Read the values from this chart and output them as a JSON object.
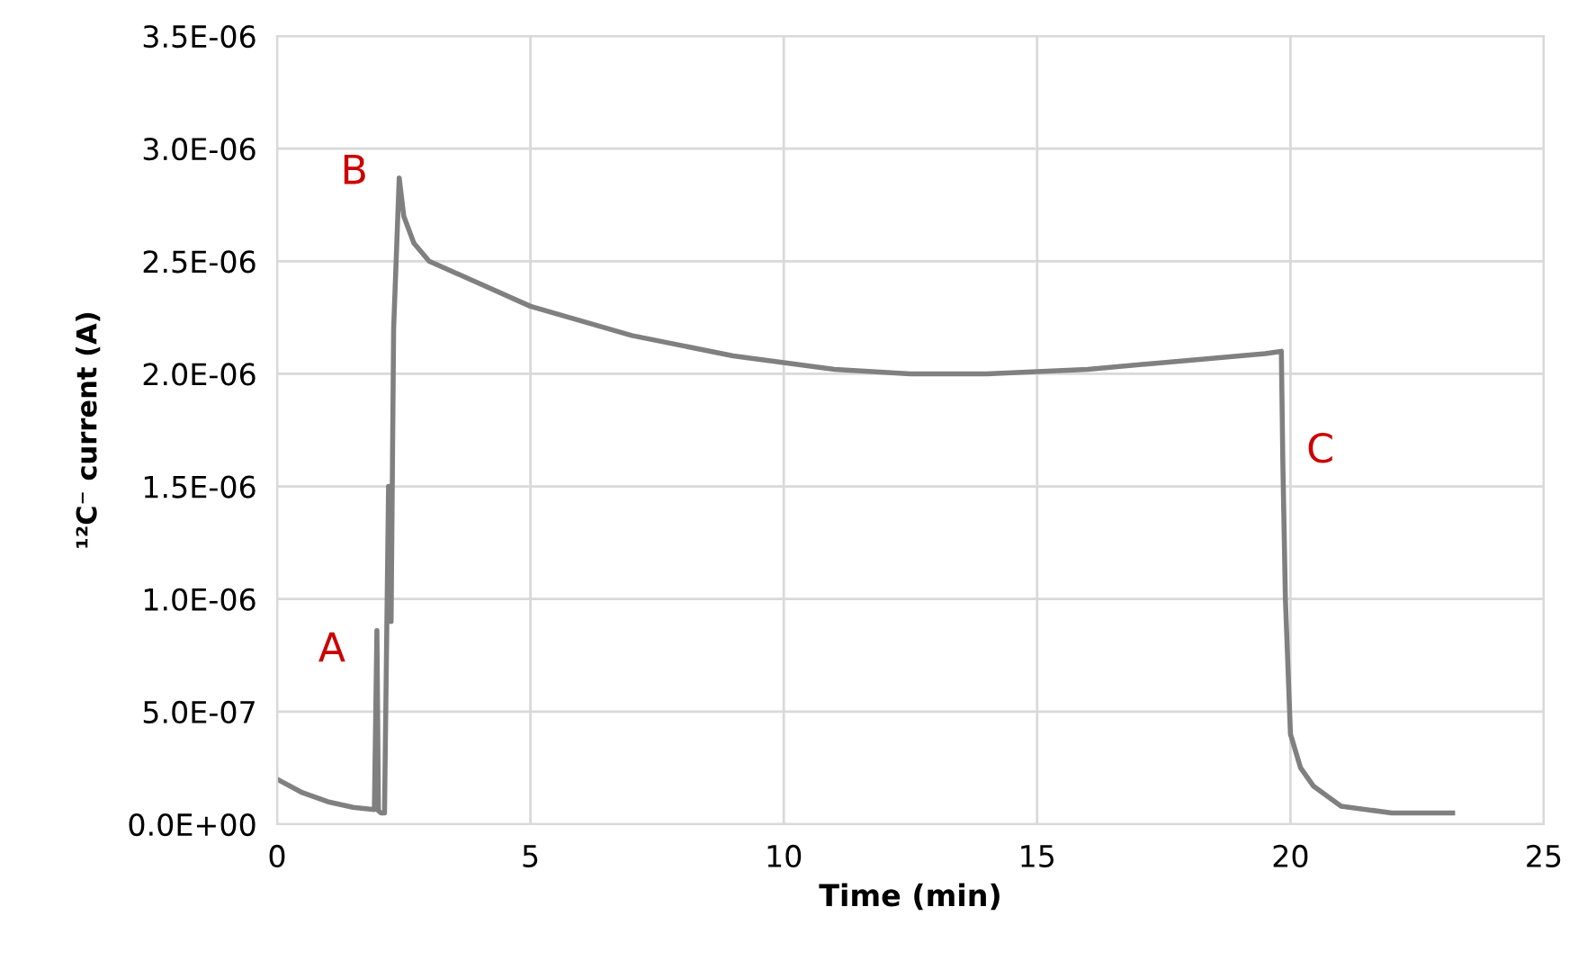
{
  "chart_data": {
    "type": "line",
    "xlabel": "Time (min)",
    "ylabel": "¹²C⁻ current (A)",
    "series": [
      {
        "color": "#808080",
        "x": [
          0,
          0.5,
          1.0,
          1.5,
          1.92,
          1.97,
          2.0,
          2.05,
          2.12,
          2.2,
          2.25,
          2.3,
          2.41,
          2.5,
          2.7,
          3,
          4,
          5,
          7,
          9,
          11,
          12.5,
          14,
          16,
          18,
          19.5,
          19.82,
          19.85,
          19.9,
          20.0,
          20.2,
          20.45,
          21,
          22,
          23.2
        ],
        "values": [
          2e-07,
          1.4e-07,
          1e-07,
          7.5e-08,
          6.5e-08,
          8.6e-07,
          6e-08,
          5e-08,
          5e-08,
          1.5e-06,
          9e-07,
          2.2e-06,
          2.87e-06,
          2.7e-06,
          2.58e-06,
          2.5e-06,
          2.4e-06,
          2.3e-06,
          2.17e-06,
          2.08e-06,
          2.02e-06,
          2e-06,
          2e-06,
          2.02e-06,
          2.06e-06,
          2.09e-06,
          2.1e-06,
          1.6e-06,
          1e-06,
          4e-07,
          2.5e-07,
          1.7e-07,
          8e-08,
          5e-08,
          5e-08
        ]
      }
    ],
    "xlim": [
      0,
      25
    ],
    "xticks": [
      0,
      5,
      10,
      15,
      20,
      25
    ],
    "ylim": [
      0,
      3.5e-06
    ],
    "yticks": [
      {
        "value": 0,
        "label": "0.0E+00"
      },
      {
        "value": 5e-07,
        "label": "5.0E-07"
      },
      {
        "value": 1e-06,
        "label": "1.0E-06"
      },
      {
        "value": 1.5e-06,
        "label": "1.5E-06"
      },
      {
        "value": 2e-06,
        "label": "2.0E-06"
      },
      {
        "value": 2.5e-06,
        "label": "2.5E-06"
      },
      {
        "value": 3e-06,
        "label": "3.0E-06"
      },
      {
        "value": 3.5e-06,
        "label": "3.5E-06"
      }
    ],
    "grid": true,
    "legend": false,
    "marker": "none",
    "line_style": "solid",
    "annotations": [
      {
        "text": "A",
        "x": 1.97,
        "y": 8.6e-07
      },
      {
        "text": "B",
        "x": 2.41,
        "y": 2.87e-06
      },
      {
        "text": "C",
        "x": 19.85,
        "y": 1.6e-06
      }
    ]
  }
}
